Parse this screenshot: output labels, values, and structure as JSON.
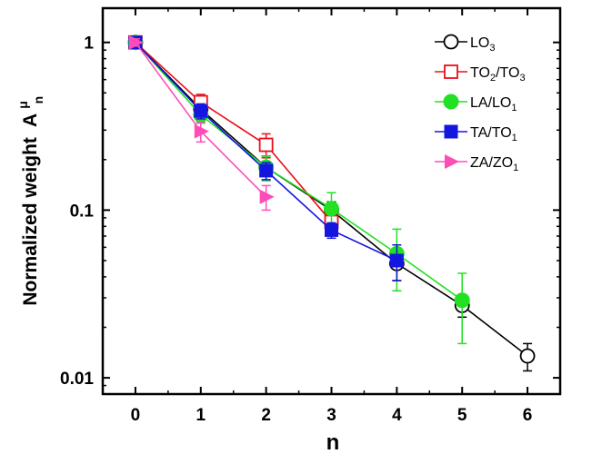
{
  "chart_data": {
    "type": "line",
    "xlabel": "n",
    "ylabel": "Normalized weight",
    "ylabel_symbol": "A",
    "ylabel_sub": "n",
    "ylabel_sup": "μ",
    "x_ticks": [
      "0",
      "1",
      "2",
      "3",
      "4",
      "5",
      "6"
    ],
    "y_ticks": [
      "0.01",
      "0.1",
      "1"
    ],
    "xlim": [
      -0.5,
      6.5
    ],
    "ylim": [
      0.008,
      1.6
    ],
    "yscale": "log",
    "legend_position": "top-right",
    "series": [
      {
        "name": "LO3",
        "name_main": "LO",
        "name_sub": "3",
        "color": "#000000",
        "marker": "circle-open",
        "x": [
          0,
          1,
          2,
          3,
          4,
          5,
          6
        ],
        "y": [
          1.0,
          0.4,
          0.18,
          0.1,
          0.048,
          0.027,
          0.0135
        ],
        "err": [
          0.05,
          0.04,
          0.03,
          0.012,
          0.01,
          0.004,
          0.0025
        ]
      },
      {
        "name": "TO2/TO3",
        "name_main": "TO",
        "name_sub": "2",
        "name_main2": "/TO",
        "name_sub2": "3",
        "color": "#e8101c",
        "marker": "square-open",
        "x": [
          0,
          1,
          2,
          3
        ],
        "y": [
          1.0,
          0.44,
          0.245,
          0.085
        ],
        "err": [
          0.05,
          0.05,
          0.04,
          0.01
        ]
      },
      {
        "name": "LA/LO1",
        "name_main": "LA/LO",
        "name_sub": "1",
        "color": "#22e022",
        "marker": "circle",
        "x": [
          0,
          1,
          2,
          3,
          4,
          5
        ],
        "y": [
          1.0,
          0.37,
          0.18,
          0.102,
          0.055,
          0.029
        ],
        "err": [
          0.06,
          0.04,
          0.03,
          0.025,
          0.022,
          0.013
        ]
      },
      {
        "name": "TA/TO1",
        "name_main": "TA/TO",
        "name_sub": "1",
        "color": "#1515e0",
        "marker": "square",
        "x": [
          0,
          1,
          2,
          3,
          4
        ],
        "y": [
          1.0,
          0.39,
          0.172,
          0.076,
          0.05
        ],
        "err": [
          0.05,
          0.04,
          0.02,
          0.008,
          0.012
        ]
      },
      {
        "name": "ZA/ZO1",
        "name_main": "ZA/ZO",
        "name_sub": "1",
        "color": "#ff4db8",
        "marker": "triangle-right",
        "x": [
          0,
          1,
          2
        ],
        "y": [
          1.0,
          0.295,
          0.12
        ],
        "err": [
          0.05,
          0.04,
          0.02
        ]
      }
    ]
  }
}
